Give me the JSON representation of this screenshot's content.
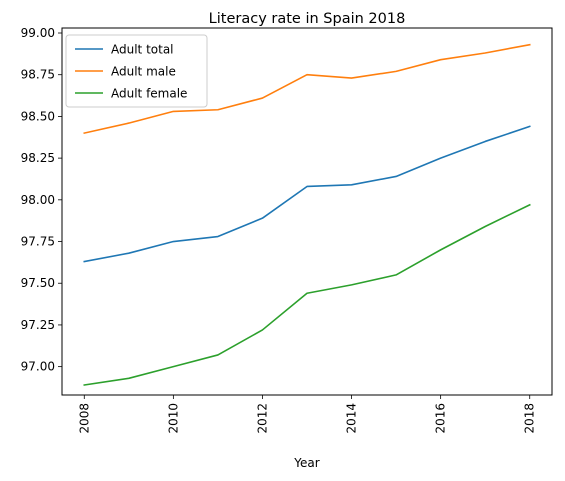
{
  "chart_data": {
    "type": "line",
    "title": "Literacy rate in Spain 2018",
    "xlabel": "Year",
    "ylabel": "",
    "x": [
      2008,
      2009,
      2010,
      2011,
      2012,
      2013,
      2014,
      2015,
      2016,
      2017,
      2018
    ],
    "xlim": [
      2007.5,
      2018.5
    ],
    "ylim": [
      96.83,
      99.03
    ],
    "x_ticks": [
      "2008",
      "2010",
      "2012",
      "2014",
      "2016",
      "2018"
    ],
    "y_ticks": [
      "97.00",
      "97.25",
      "97.50",
      "97.75",
      "98.00",
      "98.25",
      "98.50",
      "98.75",
      "99.00"
    ],
    "legend_position": "upper-left",
    "series": [
      {
        "name": "Adult total",
        "color": "#1f77b4",
        "values": [
          97.63,
          97.68,
          97.75,
          97.78,
          97.89,
          98.08,
          98.09,
          98.14,
          98.25,
          98.35,
          98.44
        ]
      },
      {
        "name": "Adult male",
        "color": "#ff7f0e",
        "values": [
          98.4,
          98.46,
          98.53,
          98.54,
          98.61,
          98.75,
          98.73,
          98.77,
          98.84,
          98.88,
          98.93
        ]
      },
      {
        "name": "Adult female",
        "color": "#2ca02c",
        "values": [
          96.89,
          96.93,
          97.0,
          97.07,
          97.22,
          97.44,
          97.49,
          97.55,
          97.7,
          97.84,
          97.97
        ]
      }
    ]
  }
}
